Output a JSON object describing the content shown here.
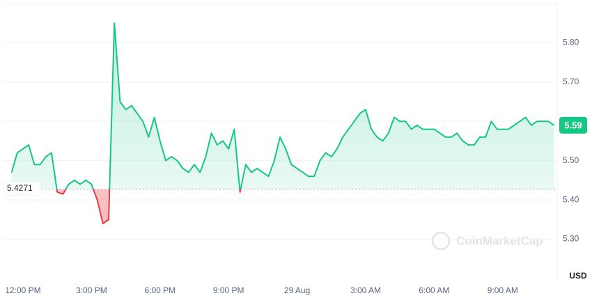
{
  "chart_data": {
    "type": "line",
    "categories": [
      null,
      null,
      "12:00 PM",
      null,
      null,
      null,
      null,
      null,
      null,
      null,
      null,
      null,
      null,
      null,
      "3:00 PM",
      null,
      null,
      null,
      null,
      null,
      null,
      null,
      null,
      null,
      null,
      null,
      "6:00 PM",
      null,
      null,
      null,
      null,
      null,
      null,
      null,
      null,
      null,
      null,
      null,
      "9:00 PM",
      null,
      null,
      null,
      null,
      null,
      null,
      null,
      null,
      null,
      null,
      null,
      "29 Aug",
      null,
      null,
      null,
      null,
      null,
      null,
      null,
      null,
      null,
      null,
      null,
      "3:00 AM",
      null,
      null,
      null,
      null,
      null,
      null,
      null,
      null,
      null,
      null,
      null,
      "6:00 AM",
      null,
      null,
      null,
      null,
      null,
      null,
      null,
      null,
      null,
      null,
      null,
      "9:00 AM",
      null,
      null,
      null,
      null,
      null,
      null,
      null,
      null,
      null
    ],
    "values": [
      5.47,
      5.52,
      5.53,
      5.54,
      5.49,
      5.49,
      5.51,
      5.52,
      5.42,
      5.415,
      5.44,
      5.45,
      5.44,
      5.45,
      5.44,
      5.4,
      5.34,
      5.35,
      5.85,
      5.65,
      5.63,
      5.64,
      5.62,
      5.6,
      5.56,
      5.61,
      5.55,
      5.5,
      5.51,
      5.5,
      5.48,
      5.47,
      5.49,
      5.47,
      5.51,
      5.57,
      5.54,
      5.55,
      5.53,
      5.58,
      5.42,
      5.49,
      5.47,
      5.48,
      5.47,
      5.46,
      5.5,
      5.56,
      5.53,
      5.49,
      5.48,
      5.47,
      5.46,
      5.46,
      5.5,
      5.52,
      5.51,
      5.53,
      5.56,
      5.58,
      5.6,
      5.62,
      5.63,
      5.58,
      5.56,
      5.55,
      5.57,
      5.61,
      5.6,
      5.6,
      5.58,
      5.59,
      5.58,
      5.58,
      5.58,
      5.57,
      5.56,
      5.56,
      5.57,
      5.55,
      5.54,
      5.54,
      5.56,
      5.56,
      5.6,
      5.58,
      5.58,
      5.58,
      5.59,
      5.6,
      5.61,
      5.59,
      5.6,
      5.6,
      5.6,
      5.59
    ],
    "baseline": 5.4271,
    "up_color": "#16c784",
    "down_color": "#ea3943",
    "ylim": [
      5.2,
      5.9
    ],
    "yticks": [
      {
        "value": 5.3,
        "label": "5.30"
      },
      {
        "value": 5.4,
        "label": "5.40"
      },
      {
        "value": 5.5,
        "label": "5.50"
      },
      {
        "value": 5.6,
        "label": "5.60"
      },
      {
        "value": 5.7,
        "label": "5.70"
      },
      {
        "value": 5.8,
        "label": "5.80"
      }
    ],
    "grid": true,
    "unit_label": "USD",
    "watermark": "CoinMarketCap"
  }
}
